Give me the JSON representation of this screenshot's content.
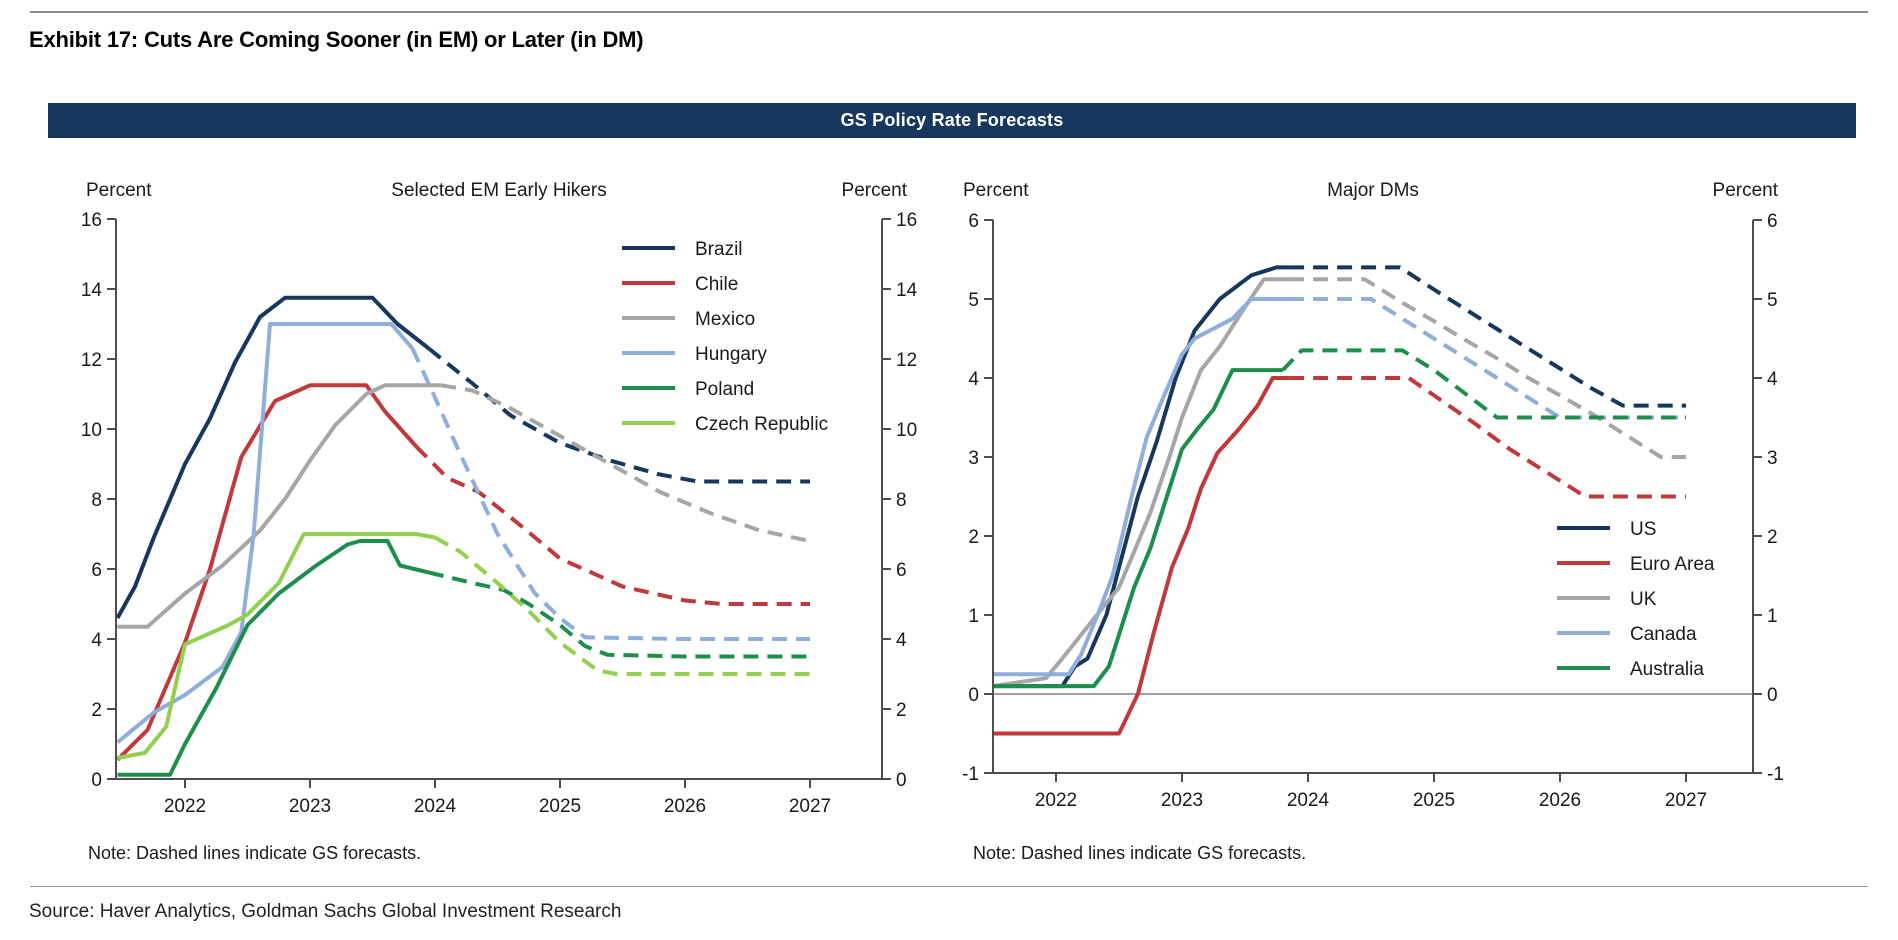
{
  "page": {
    "exhibit_title": "Exhibit 17: Cuts Are Coming Sooner (in EM) or Later (in DM)",
    "banner_title": "GS Policy Rate Forecasts",
    "source_line": "Source: Haver Analytics, Goldman Sachs Global Investment Research",
    "banner_color": "#17375E"
  },
  "chart_data": [
    {
      "type": "line",
      "title": "Selected EM Early Hikers",
      "unit_label_left": "Percent",
      "unit_label_right": "Percent",
      "note": "Note: Dashed lines indicate GS forecasts.",
      "ylim": [
        0,
        16
      ],
      "yticks": [
        0,
        2,
        4,
        6,
        8,
        10,
        12,
        14,
        16
      ],
      "xticks": [
        2022,
        2023,
        2024,
        2025,
        2026,
        2027
      ],
      "zero_line": false,
      "legend_position": "upper-right",
      "series": [
        {
          "name": "Brazil",
          "color": "#17375E",
          "history": [
            [
              2021.46,
              4.6
            ],
            [
              2021.6,
              5.5
            ],
            [
              2021.75,
              6.9
            ],
            [
              2022.0,
              9.0
            ],
            [
              2022.2,
              10.3
            ],
            [
              2022.4,
              11.9
            ],
            [
              2022.6,
              13.2
            ],
            [
              2022.8,
              13.75
            ],
            [
              2023.5,
              13.75
            ],
            [
              2023.7,
              13.0
            ],
            [
              2023.95,
              12.3
            ]
          ],
          "forecast": [
            [
              2023.95,
              12.3
            ],
            [
              2024.3,
              11.3
            ],
            [
              2024.6,
              10.4
            ],
            [
              2025.0,
              9.6
            ],
            [
              2025.4,
              9.1
            ],
            [
              2025.8,
              8.7
            ],
            [
              2026.1,
              8.5
            ],
            [
              2027.0,
              8.5
            ]
          ]
        },
        {
          "name": "Chile",
          "color": "#C0393B",
          "history": [
            [
              2021.46,
              0.55
            ],
            [
              2021.7,
              1.4
            ],
            [
              2022.0,
              3.9
            ],
            [
              2022.2,
              6.0
            ],
            [
              2022.45,
              9.2
            ],
            [
              2022.72,
              10.8
            ],
            [
              2023.0,
              11.25
            ],
            [
              2023.45,
              11.25
            ],
            [
              2023.6,
              10.5
            ],
            [
              2023.85,
              9.5
            ]
          ],
          "forecast": [
            [
              2023.85,
              9.5
            ],
            [
              2024.1,
              8.6
            ],
            [
              2024.35,
              8.2
            ],
            [
              2024.7,
              7.2
            ],
            [
              2025.0,
              6.3
            ],
            [
              2025.5,
              5.5
            ],
            [
              2026.0,
              5.1
            ],
            [
              2026.3,
              5.0
            ],
            [
              2027.0,
              5.0
            ]
          ]
        },
        {
          "name": "Mexico",
          "color": "#A6A6A6",
          "history": [
            [
              2021.46,
              4.35
            ],
            [
              2021.7,
              4.35
            ],
            [
              2022.0,
              5.3
            ],
            [
              2022.3,
              6.1
            ],
            [
              2022.6,
              7.1
            ],
            [
              2022.8,
              8.0
            ],
            [
              2023.0,
              9.1
            ],
            [
              2023.2,
              10.1
            ],
            [
              2023.45,
              11.0
            ],
            [
              2023.6,
              11.25
            ],
            [
              2024.05,
              11.25
            ]
          ],
          "forecast": [
            [
              2024.05,
              11.25
            ],
            [
              2024.3,
              11.1
            ],
            [
              2024.6,
              10.6
            ],
            [
              2025.0,
              9.8
            ],
            [
              2025.4,
              9.0
            ],
            [
              2025.8,
              8.2
            ],
            [
              2026.2,
              7.6
            ],
            [
              2026.6,
              7.1
            ],
            [
              2027.0,
              6.8
            ]
          ]
        },
        {
          "name": "Hungary",
          "color": "#8FAEDC",
          "history": [
            [
              2021.46,
              1.05
            ],
            [
              2021.75,
              1.9
            ],
            [
              2022.0,
              2.4
            ],
            [
              2022.3,
              3.2
            ],
            [
              2022.45,
              4.2
            ],
            [
              2022.55,
              7.0
            ],
            [
              2022.68,
              13.0
            ],
            [
              2023.65,
              13.0
            ],
            [
              2023.82,
              12.3
            ]
          ],
          "forecast": [
            [
              2023.82,
              12.3
            ],
            [
              2024.0,
              10.9
            ],
            [
              2024.2,
              9.3
            ],
            [
              2024.5,
              7.0
            ],
            [
              2024.8,
              5.3
            ],
            [
              2025.0,
              4.6
            ],
            [
              2025.2,
              4.05
            ],
            [
              2026.0,
              4.0
            ],
            [
              2027.0,
              4.0
            ]
          ]
        },
        {
          "name": "Poland",
          "color": "#1E8E4D",
          "history": [
            [
              2021.46,
              0.12
            ],
            [
              2021.88,
              0.12
            ],
            [
              2022.0,
              1.0
            ],
            [
              2022.25,
              2.6
            ],
            [
              2022.5,
              4.4
            ],
            [
              2022.75,
              5.3
            ],
            [
              2023.05,
              6.1
            ],
            [
              2023.3,
              6.7
            ],
            [
              2023.4,
              6.8
            ],
            [
              2023.62,
              6.8
            ],
            [
              2023.72,
              6.1
            ],
            [
              2023.95,
              5.9
            ]
          ],
          "forecast": [
            [
              2023.95,
              5.9
            ],
            [
              2024.3,
              5.6
            ],
            [
              2024.55,
              5.4
            ],
            [
              2024.75,
              5.0
            ],
            [
              2025.0,
              4.4
            ],
            [
              2025.2,
              3.8
            ],
            [
              2025.38,
              3.55
            ],
            [
              2026.0,
              3.5
            ],
            [
              2027.0,
              3.5
            ]
          ]
        },
        {
          "name": "Czech Republic",
          "color": "#92D050",
          "history": [
            [
              2021.46,
              0.6
            ],
            [
              2021.68,
              0.75
            ],
            [
              2021.85,
              1.5
            ],
            [
              2022.0,
              3.85
            ],
            [
              2022.35,
              4.4
            ],
            [
              2022.5,
              4.7
            ],
            [
              2022.75,
              5.6
            ],
            [
              2022.95,
              7.0
            ],
            [
              2023.85,
              7.0
            ],
            [
              2024.0,
              6.9
            ]
          ],
          "forecast": [
            [
              2024.0,
              6.9
            ],
            [
              2024.2,
              6.5
            ],
            [
              2024.5,
              5.6
            ],
            [
              2024.75,
              4.8
            ],
            [
              2025.0,
              3.9
            ],
            [
              2025.3,
              3.1
            ],
            [
              2025.45,
              3.0
            ],
            [
              2026.0,
              3.0
            ],
            [
              2027.0,
              3.0
            ]
          ]
        }
      ]
    },
    {
      "type": "line",
      "title": "Major DMs",
      "unit_label_left": "Percent",
      "unit_label_right": "Percent",
      "note": "Note: Dashed lines indicate GS forecasts.",
      "ylim": [
        -1,
        6
      ],
      "yticks": [
        -1,
        0,
        1,
        2,
        3,
        4,
        5,
        6
      ],
      "xticks": [
        2022,
        2023,
        2024,
        2025,
        2026,
        2027
      ],
      "zero_line": true,
      "legend_position": "lower-right",
      "series": [
        {
          "name": "US",
          "color": "#17375E",
          "history": [
            [
              2021.5,
              0.1
            ],
            [
              2022.05,
              0.1
            ],
            [
              2022.15,
              0.35
            ],
            [
              2022.25,
              0.45
            ],
            [
              2022.4,
              1.0
            ],
            [
              2022.5,
              1.6
            ],
            [
              2022.65,
              2.5
            ],
            [
              2022.8,
              3.2
            ],
            [
              2022.95,
              4.0
            ],
            [
              2023.1,
              4.6
            ],
            [
              2023.3,
              5.0
            ],
            [
              2023.55,
              5.3
            ],
            [
              2023.75,
              5.4
            ],
            [
              2023.85,
              5.4
            ]
          ],
          "forecast": [
            [
              2023.85,
              5.4
            ],
            [
              2024.73,
              5.4
            ],
            [
              2025.0,
              5.12
            ],
            [
              2025.25,
              4.87
            ],
            [
              2025.5,
              4.62
            ],
            [
              2025.75,
              4.37
            ],
            [
              2026.0,
              4.12
            ],
            [
              2026.25,
              3.87
            ],
            [
              2026.5,
              3.65
            ],
            [
              2027.0,
              3.65
            ]
          ]
        },
        {
          "name": "Euro Area",
          "color": "#C0393B",
          "history": [
            [
              2021.5,
              -0.5
            ],
            [
              2022.5,
              -0.5
            ],
            [
              2022.65,
              0.0
            ],
            [
              2022.78,
              0.8
            ],
            [
              2022.92,
              1.6
            ],
            [
              2023.05,
              2.1
            ],
            [
              2023.15,
              2.6
            ],
            [
              2023.28,
              3.05
            ],
            [
              2023.45,
              3.35
            ],
            [
              2023.6,
              3.65
            ],
            [
              2023.72,
              4.0
            ],
            [
              2023.85,
              4.0
            ]
          ],
          "forecast": [
            [
              2023.85,
              4.0
            ],
            [
              2024.8,
              4.0
            ],
            [
              2025.0,
              3.78
            ],
            [
              2025.3,
              3.45
            ],
            [
              2025.6,
              3.1
            ],
            [
              2025.9,
              2.8
            ],
            [
              2026.2,
              2.5
            ],
            [
              2027.0,
              2.5
            ]
          ]
        },
        {
          "name": "UK",
          "color": "#A6A6A6",
          "history": [
            [
              2021.5,
              0.1
            ],
            [
              2021.92,
              0.2
            ],
            [
              2022.05,
              0.45
            ],
            [
              2022.2,
              0.75
            ],
            [
              2022.35,
              1.05
            ],
            [
              2022.5,
              1.35
            ],
            [
              2022.62,
              1.8
            ],
            [
              2022.75,
              2.3
            ],
            [
              2022.9,
              3.0
            ],
            [
              2023.0,
              3.5
            ],
            [
              2023.15,
              4.1
            ],
            [
              2023.3,
              4.4
            ],
            [
              2023.5,
              4.9
            ],
            [
              2023.65,
              5.25
            ],
            [
              2023.85,
              5.25
            ]
          ],
          "forecast": [
            [
              2023.85,
              5.25
            ],
            [
              2024.45,
              5.25
            ],
            [
              2024.75,
              4.95
            ],
            [
              2025.0,
              4.72
            ],
            [
              2025.25,
              4.48
            ],
            [
              2025.5,
              4.25
            ],
            [
              2025.75,
              4.0
            ],
            [
              2026.0,
              3.78
            ],
            [
              2026.25,
              3.55
            ],
            [
              2026.5,
              3.3
            ],
            [
              2026.8,
              3.0
            ],
            [
              2027.0,
              3.0
            ]
          ]
        },
        {
          "name": "Canada",
          "color": "#8FAEDC",
          "history": [
            [
              2021.5,
              0.25
            ],
            [
              2022.1,
              0.25
            ],
            [
              2022.2,
              0.5
            ],
            [
              2022.33,
              1.0
            ],
            [
              2022.45,
              1.5
            ],
            [
              2022.6,
              2.5
            ],
            [
              2022.72,
              3.25
            ],
            [
              2022.85,
              3.75
            ],
            [
              2023.0,
              4.3
            ],
            [
              2023.1,
              4.5
            ],
            [
              2023.4,
              4.75
            ],
            [
              2023.55,
              5.0
            ],
            [
              2023.85,
              5.0
            ]
          ],
          "forecast": [
            [
              2023.85,
              5.0
            ],
            [
              2024.5,
              5.0
            ],
            [
              2024.75,
              4.75
            ],
            [
              2025.0,
              4.5
            ],
            [
              2025.25,
              4.25
            ],
            [
              2025.5,
              4.0
            ],
            [
              2025.75,
              3.75
            ],
            [
              2026.0,
              3.5
            ],
            [
              2027.0,
              3.5
            ]
          ]
        },
        {
          "name": "Australia",
          "color": "#1E8E4D",
          "history": [
            [
              2021.5,
              0.1
            ],
            [
              2022.3,
              0.1
            ],
            [
              2022.42,
              0.35
            ],
            [
              2022.52,
              0.85
            ],
            [
              2022.62,
              1.35
            ],
            [
              2022.75,
              1.85
            ],
            [
              2022.9,
              2.6
            ],
            [
              2023.0,
              3.1
            ],
            [
              2023.12,
              3.35
            ],
            [
              2023.25,
              3.6
            ],
            [
              2023.4,
              4.1
            ],
            [
              2023.8,
              4.1
            ]
          ],
          "forecast": [
            [
              2023.8,
              4.1
            ],
            [
              2023.95,
              4.35
            ],
            [
              2024.75,
              4.35
            ],
            [
              2025.0,
              4.1
            ],
            [
              2025.25,
              3.8
            ],
            [
              2025.5,
              3.5
            ],
            [
              2027.0,
              3.5
            ]
          ]
        }
      ]
    }
  ]
}
